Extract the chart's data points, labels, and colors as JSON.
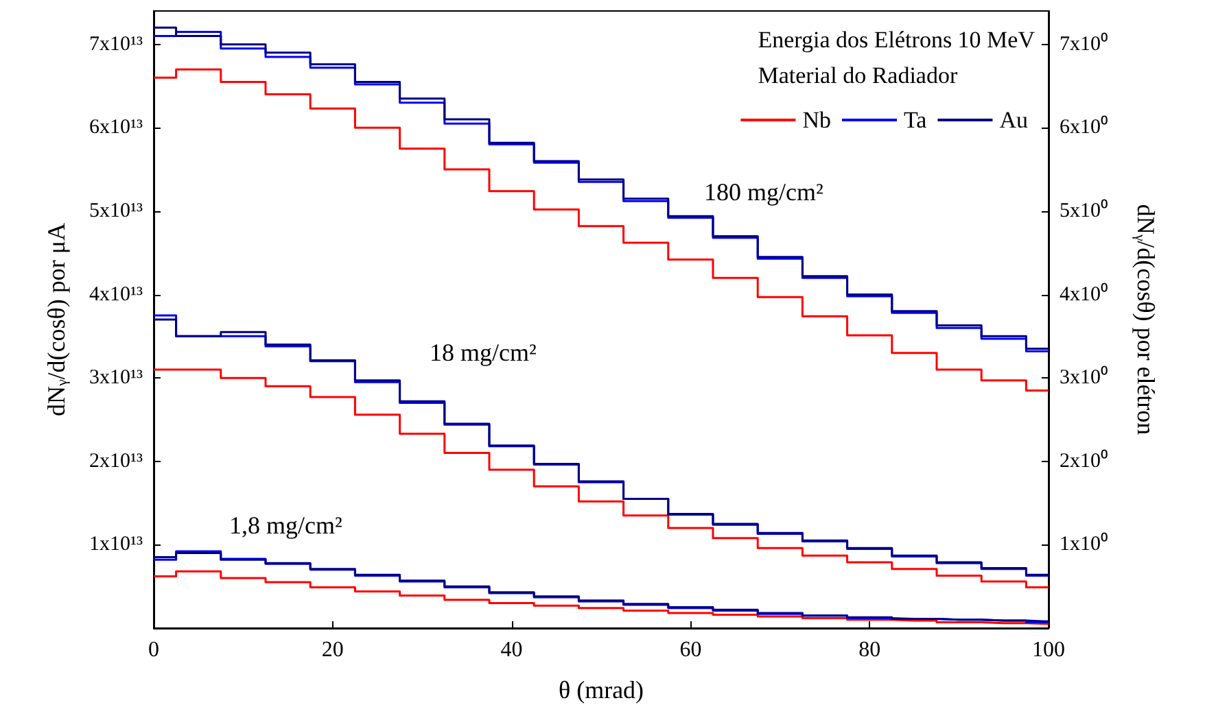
{
  "chart_data": {
    "type": "step",
    "legend_title": "Energia dos Elétrons 10 MeV\nMaterial do Radiador",
    "xlabel": "θ (mrad)",
    "ylabel": "dNᵧ/d(cosθ) por μA",
    "y2label": "dNᵧ/d(cosθ) por elétron",
    "x": [
      0,
      5,
      10,
      15,
      20,
      25,
      30,
      35,
      40,
      45,
      50,
      55,
      60,
      65,
      70,
      75,
      80,
      85,
      90,
      95,
      100
    ],
    "series": [
      {
        "name": "Nb",
        "color": "#ff0000",
        "values": [
          66000000000000.0,
          67000000000000.0,
          65500000000000.0,
          64000000000000.0,
          62300000000000.0,
          60000000000000.0,
          57500000000000.0,
          55000000000000.0,
          52400000000000.0,
          50200000000000.0,
          48200000000000.0,
          46200000000000.0,
          44200000000000.0,
          42000000000000.0,
          39700000000000.0,
          37400000000000.0,
          35100000000000.0,
          33000000000000.0,
          31000000000000.0,
          29700000000000.0,
          28500000000000.0
        ]
      },
      {
        "name": "Ta",
        "color": "#0000ff",
        "values": [
          71000000000000.0,
          71500000000000.0,
          69500000000000.0,
          68500000000000.0,
          67200000000000.0,
          65200000000000.0,
          63000000000000.0,
          60500000000000.0,
          58000000000000.0,
          55800000000000.0,
          53500000000000.0,
          51200000000000.0,
          49200000000000.0,
          46800000000000.0,
          44300000000000.0,
          42000000000000.0,
          39800000000000.0,
          37800000000000.0,
          36000000000000.0,
          34700000000000.0,
          33200000000000.0
        ]
      },
      {
        "name": "Au",
        "color": "#000080",
        "values": [
          72000000000000.0,
          71000000000000.0,
          70000000000000.0,
          69000000000000.0,
          67600000000000.0,
          65500000000000.0,
          63500000000000.0,
          61000000000000.0,
          58200000000000.0,
          56000000000000.0,
          53800000000000.0,
          51500000000000.0,
          49400000000000.0,
          47000000000000.0,
          44500000000000.0,
          42200000000000.0,
          40000000000000.0,
          38000000000000.0,
          36300000000000.0,
          35000000000000.0,
          33500000000000.0
        ]
      },
      {
        "color": "#ff0000",
        "values": [
          31000000000000.0,
          31000000000000.0,
          30000000000000.0,
          29000000000000.0,
          27700000000000.0,
          25600000000000.0,
          23300000000000.0,
          21000000000000.0,
          19000000000000.0,
          17000000000000.0,
          15200000000000.0,
          13500000000000.0,
          12000000000000.0,
          10800000000000.0,
          9600000000000.0,
          8700000000000.0,
          7900000000000.0,
          7100000000000.0,
          6300000000000.0,
          5600000000000.0,
          4900000000000.0
        ]
      },
      {
        "color": "#0000ff",
        "values": [
          37500000000000.0,
          35000000000000.0,
          35000000000000.0,
          33800000000000.0,
          32000000000000.0,
          29500000000000.0,
          27000000000000.0,
          24400000000000.0,
          21800000000000.0,
          19600000000000.0,
          17500000000000.0,
          15500000000000.0,
          13600000000000.0,
          12400000000000.0,
          11300000000000.0,
          10400000000000.0,
          9500000000000.0,
          8600000000000.0,
          7800000000000.0,
          7100000000000.0,
          6300000000000.0
        ]
      },
      {
        "color": "#000080",
        "values": [
          37000000000000.0,
          35000000000000.0,
          35500000000000.0,
          34000000000000.0,
          32100000000000.0,
          29700000000000.0,
          27200000000000.0,
          24500000000000.0,
          21900000000000.0,
          19700000000000.0,
          17600000000000.0,
          15500000000000.0,
          13700000000000.0,
          12500000000000.0,
          11400000000000.0,
          10500000000000.0,
          9600000000000.0,
          8700000000000.0,
          7900000000000.0,
          7200000000000.0,
          6400000000000.0
        ]
      },
      {
        "color": "#ff0000",
        "values": [
          6200000000000.0,
          6800000000000.0,
          6000000000000.0,
          5500000000000.0,
          4900000000000.0,
          4400000000000.0,
          3900000000000.0,
          3400000000000.0,
          3000000000000.0,
          2700000000000.0,
          2400000000000.0,
          2100000000000.0,
          1800000000000.0,
          1600000000000.0,
          1400000000000.0,
          1200000000000.0,
          1000000000000.0,
          900000000000.0,
          700000000000.0,
          600000000000.0,
          500000000000.0
        ]
      },
      {
        "color": "#0000ff",
        "values": [
          8200000000000.0,
          9200000000000.0,
          8300000000000.0,
          7700000000000.0,
          7000000000000.0,
          6300000000000.0,
          5600000000000.0,
          4900000000000.0,
          4200000000000.0,
          3700000000000.0,
          3200000000000.0,
          2800000000000.0,
          2400000000000.0,
          2100000000000.0,
          1700000000000.0,
          1500000000000.0,
          1200000000000.0,
          1100000000000.0,
          1000000000000.0,
          900000000000.0,
          700000000000.0
        ]
      },
      {
        "color": "#000080",
        "values": [
          8500000000000.0,
          9000000000000.0,
          8200000000000.0,
          7800000000000.0,
          7100000000000.0,
          6400000000000.0,
          5700000000000.0,
          5000000000000.0,
          4300000000000.0,
          3800000000000.0,
          3300000000000.0,
          2900000000000.0,
          2500000000000.0,
          2200000000000.0,
          1800000000000.0,
          1500000000000.0,
          1300000000000.0,
          1100000000000.0,
          1000000000000.0,
          900000000000.0,
          800000000000.0
        ]
      }
    ],
    "annotations": [
      "180 mg/cm²",
      "18 mg/cm²",
      "1,8 mg/cm²"
    ],
    "xlim": [
      0,
      100
    ],
    "xticks": [
      0,
      20,
      40,
      60,
      80,
      100
    ],
    "ylim": [
      0,
      74000000000000.0
    ],
    "yticks": [
      {
        "value": 10000000000000.0,
        "label": "1x10¹³"
      },
      {
        "value": 20000000000000.0,
        "label": "2x10¹³"
      },
      {
        "value": 30000000000000.0,
        "label": "3x10¹³"
      },
      {
        "value": 40000000000000.0,
        "label": "4x10¹³"
      },
      {
        "value": 50000000000000.0,
        "label": "5x10¹³"
      },
      {
        "value": 60000000000000.0,
        "label": "6x10¹³"
      },
      {
        "value": 70000000000000.0,
        "label": "7x10¹³"
      }
    ],
    "y2lim": [
      0,
      7.4
    ],
    "y2ticks": [
      {
        "value": 1,
        "label": "1x10⁰"
      },
      {
        "value": 2,
        "label": "2x10⁰"
      },
      {
        "value": 3,
        "label": "3x10⁰"
      },
      {
        "value": 4,
        "label": "4x10⁰"
      },
      {
        "value": 5,
        "label": "5x10⁰"
      },
      {
        "value": 6,
        "label": "6x10⁰"
      },
      {
        "value": 7,
        "label": "7x10⁰"
      }
    ],
    "grid": false,
    "legend": "top right",
    "marker": "none",
    "line_style": "solid"
  }
}
